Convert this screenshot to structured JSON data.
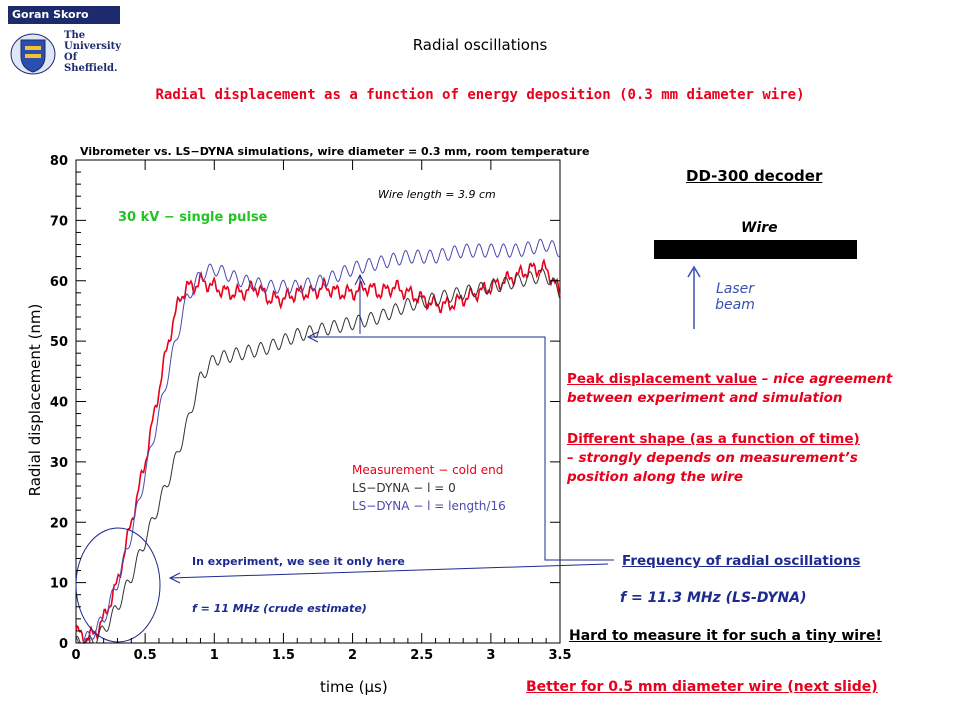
{
  "header": {
    "author": "Goran Skoro",
    "university": [
      "The",
      "University",
      "Of",
      "Sheffield."
    ],
    "title": "Radial oscillations",
    "subtitle": "Radial displacement as a function of energy deposition (0.3 mm diameter wire)"
  },
  "diagram": {
    "decoder": "DD-300 decoder",
    "wire": "Wire",
    "laser": [
      "Laser",
      "beam"
    ]
  },
  "notes": {
    "peak_underlined": "Peak displacement value",
    "peak_rest": " – nice agreement",
    "peak_line2": "between experiment and simulation",
    "shape_line1": "Different shape (as a function of time)",
    "shape_line2": "– strongly depends on measurement’s",
    "shape_line3": "position along the wire",
    "freq_title": "Frequency of radial oscillations",
    "freq_value": "f = 11.3 MHz (LS-DYNA)",
    "hard": "Hard to measure it for such a tiny wire!",
    "better": "Better for 0.5 mm diameter wire (next slide)"
  },
  "chart_data": {
    "type": "line",
    "title": "Vibrometer vs. LS−DYNA simulations, wire diameter = 0.3 mm, room temperature",
    "xlabel": "time (μs)",
    "ylabel": "Radial displacement (nm)",
    "xlim": [
      0,
      3.5
    ],
    "ylim": [
      0,
      80
    ],
    "xticks": [
      "0",
      "0.5",
      "1",
      "1.5",
      "2",
      "2.5",
      "3",
      "3.5"
    ],
    "yticks": [
      "0",
      "10",
      "20",
      "30",
      "40",
      "50",
      "60",
      "70",
      "80"
    ],
    "annotations": {
      "wire_length": "Wire length = 3.9 cm",
      "pulse": "30 kV − single pulse",
      "experiment": "In experiment, we see it only here",
      "crude": "f = 11 MHz (crude estimate)"
    },
    "legend_position": "middle-right",
    "series": [
      {
        "name": "Measurement − cold end",
        "color": "#e8001c",
        "x": [
          0,
          0.05,
          0.1,
          0.15,
          0.2,
          0.25,
          0.3,
          0.35,
          0.4,
          0.45,
          0.5,
          0.55,
          0.6,
          0.65,
          0.7,
          0.75,
          0.8,
          0.85,
          0.9,
          1.0,
          1.1,
          1.2,
          1.3,
          1.4,
          1.5,
          1.6,
          1.7,
          1.8,
          1.9,
          2.0,
          2.1,
          2.2,
          2.3,
          2.4,
          2.5,
          2.6,
          2.7,
          2.8,
          2.9,
          3.0,
          3.1,
          3.2,
          3.3,
          3.4,
          3.5
        ],
        "y": [
          2,
          1,
          1,
          2,
          4,
          7,
          10,
          15,
          20,
          25,
          30,
          36,
          42,
          48,
          53,
          57,
          59,
          59,
          60,
          59,
          58,
          58,
          59,
          57,
          57,
          58,
          58,
          59,
          58,
          58,
          59,
          58,
          59,
          58,
          57,
          56,
          56,
          57,
          58,
          59,
          60,
          61,
          62,
          62,
          58
        ]
      },
      {
        "name": "LS−DYNA − l = 0",
        "color": "#333333",
        "x": [
          0,
          0.1,
          0.2,
          0.3,
          0.4,
          0.5,
          0.6,
          0.7,
          0.8,
          0.9,
          1.0,
          1.2,
          1.4,
          1.6,
          1.8,
          2.0,
          2.2,
          2.4,
          2.6,
          2.8,
          3.0,
          3.2,
          3.4,
          3.5
        ],
        "y": [
          0,
          0,
          2,
          6,
          11,
          17,
          23,
          29,
          36,
          44,
          47,
          48,
          49,
          51,
          52,
          53,
          54,
          56,
          57,
          58,
          59,
          60,
          61,
          58
        ]
      },
      {
        "name": "LS−DYNA − l = length/16",
        "color": "#4a4ab0",
        "x": [
          0,
          0.1,
          0.2,
          0.3,
          0.4,
          0.5,
          0.6,
          0.7,
          0.8,
          0.9,
          1.0,
          1.2,
          1.4,
          1.6,
          1.8,
          2.0,
          2.2,
          2.4,
          2.6,
          2.8,
          3.0,
          3.2,
          3.4,
          3.5
        ],
        "y": [
          0,
          1,
          4,
          10,
          18,
          28,
          38,
          48,
          57,
          61,
          62,
          60,
          59,
          59,
          60,
          62,
          63,
          64,
          64,
          65,
          65,
          65,
          66,
          65
        ]
      }
    ]
  }
}
